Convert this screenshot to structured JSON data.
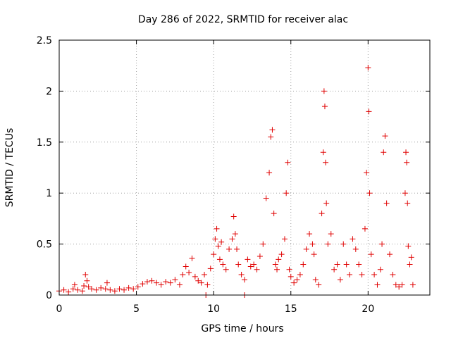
{
  "chart_data": {
    "type": "scatter",
    "title": "Day 286 of 2022, SRMTID for receiver alac",
    "xlabel": "GPS time / hours",
    "ylabel": "SRMTID / TECUs",
    "xlim": [
      0,
      24
    ],
    "ylim": [
      0,
      2.5
    ],
    "xticks": [
      "0",
      "5",
      "10",
      "15",
      "20"
    ],
    "xtick_values": [
      0,
      5,
      10,
      15,
      20
    ],
    "yticks": [
      "0",
      "0.5",
      "1",
      "1.5",
      "2",
      "2.5"
    ],
    "ytick_values": [
      0,
      0.5,
      1,
      1.5,
      2,
      2.5
    ],
    "grid": true,
    "marker": "plus",
    "color": "#e00000",
    "series": [
      {
        "name": "SRMTID",
        "x": [
          0.0,
          0.3,
          0.6,
          0.9,
          1.0,
          1.2,
          1.5,
          1.6,
          1.7,
          1.8,
          1.9,
          2.1,
          2.4,
          2.7,
          3.0,
          3.1,
          3.3,
          3.6,
          3.9,
          4.2,
          4.5,
          4.8,
          5.1,
          5.4,
          5.7,
          6.0,
          6.3,
          6.6,
          6.9,
          7.2,
          7.5,
          7.8,
          8.0,
          8.2,
          8.4,
          8.6,
          8.8,
          9.0,
          9.2,
          9.4,
          9.6,
          9.8,
          10.0,
          10.1,
          10.2,
          10.3,
          10.4,
          10.5,
          10.6,
          10.8,
          11.0,
          11.2,
          11.3,
          11.4,
          11.5,
          11.6,
          11.8,
          12.0,
          12.2,
          12.4,
          12.6,
          12.8,
          13.0,
          13.2,
          13.4,
          13.6,
          13.7,
          13.8,
          13.9,
          14.0,
          14.1,
          14.2,
          14.4,
          14.6,
          14.7,
          14.8,
          14.9,
          15.0,
          15.2,
          15.4,
          15.6,
          15.8,
          16.0,
          16.2,
          16.4,
          16.5,
          16.6,
          16.8,
          17.0,
          17.1,
          17.15,
          17.2,
          17.25,
          17.3,
          17.4,
          17.6,
          17.8,
          18.0,
          18.2,
          18.4,
          18.6,
          18.8,
          19.0,
          19.2,
          19.4,
          19.6,
          19.8,
          19.9,
          20.0,
          20.05,
          20.1,
          20.2,
          20.4,
          20.6,
          20.8,
          20.9,
          21.0,
          21.1,
          21.2,
          21.4,
          21.6,
          21.8,
          22.0,
          22.2,
          22.4,
          22.45,
          22.5,
          22.55,
          22.6,
          22.7,
          22.8,
          22.9,
          9.5,
          12.0
        ],
        "y": [
          0.04,
          0.05,
          0.03,
          0.06,
          0.1,
          0.05,
          0.04,
          0.09,
          0.2,
          0.14,
          0.08,
          0.06,
          0.05,
          0.07,
          0.06,
          0.12,
          0.05,
          0.04,
          0.06,
          0.05,
          0.07,
          0.06,
          0.08,
          0.11,
          0.13,
          0.14,
          0.12,
          0.1,
          0.13,
          0.12,
          0.15,
          0.1,
          0.2,
          0.28,
          0.22,
          0.36,
          0.18,
          0.14,
          0.12,
          0.2,
          0.1,
          0.26,
          0.4,
          0.55,
          0.65,
          0.48,
          0.35,
          0.52,
          0.3,
          0.25,
          0.45,
          0.55,
          0.77,
          0.6,
          0.45,
          0.3,
          0.2,
          0.15,
          0.35,
          0.28,
          0.3,
          0.25,
          0.38,
          0.5,
          0.95,
          1.2,
          1.55,
          1.62,
          0.8,
          0.3,
          0.25,
          0.35,
          0.4,
          0.55,
          1.0,
          1.3,
          0.25,
          0.18,
          0.12,
          0.15,
          0.2,
          0.3,
          0.45,
          0.6,
          0.5,
          0.4,
          0.15,
          0.1,
          0.8,
          1.4,
          2.0,
          1.85,
          1.3,
          0.9,
          0.5,
          0.6,
          0.25,
          0.3,
          0.15,
          0.5,
          0.3,
          0.2,
          0.55,
          0.45,
          0.3,
          0.2,
          0.65,
          1.2,
          2.23,
          1.8,
          1.0,
          0.4,
          0.2,
          0.1,
          0.25,
          0.5,
          1.4,
          1.56,
          0.9,
          0.4,
          0.2,
          0.1,
          0.08,
          0.1,
          1.0,
          1.4,
          1.3,
          0.9,
          0.48,
          0.3,
          0.37,
          0.1,
          0.0,
          0.0
        ]
      }
    ]
  }
}
